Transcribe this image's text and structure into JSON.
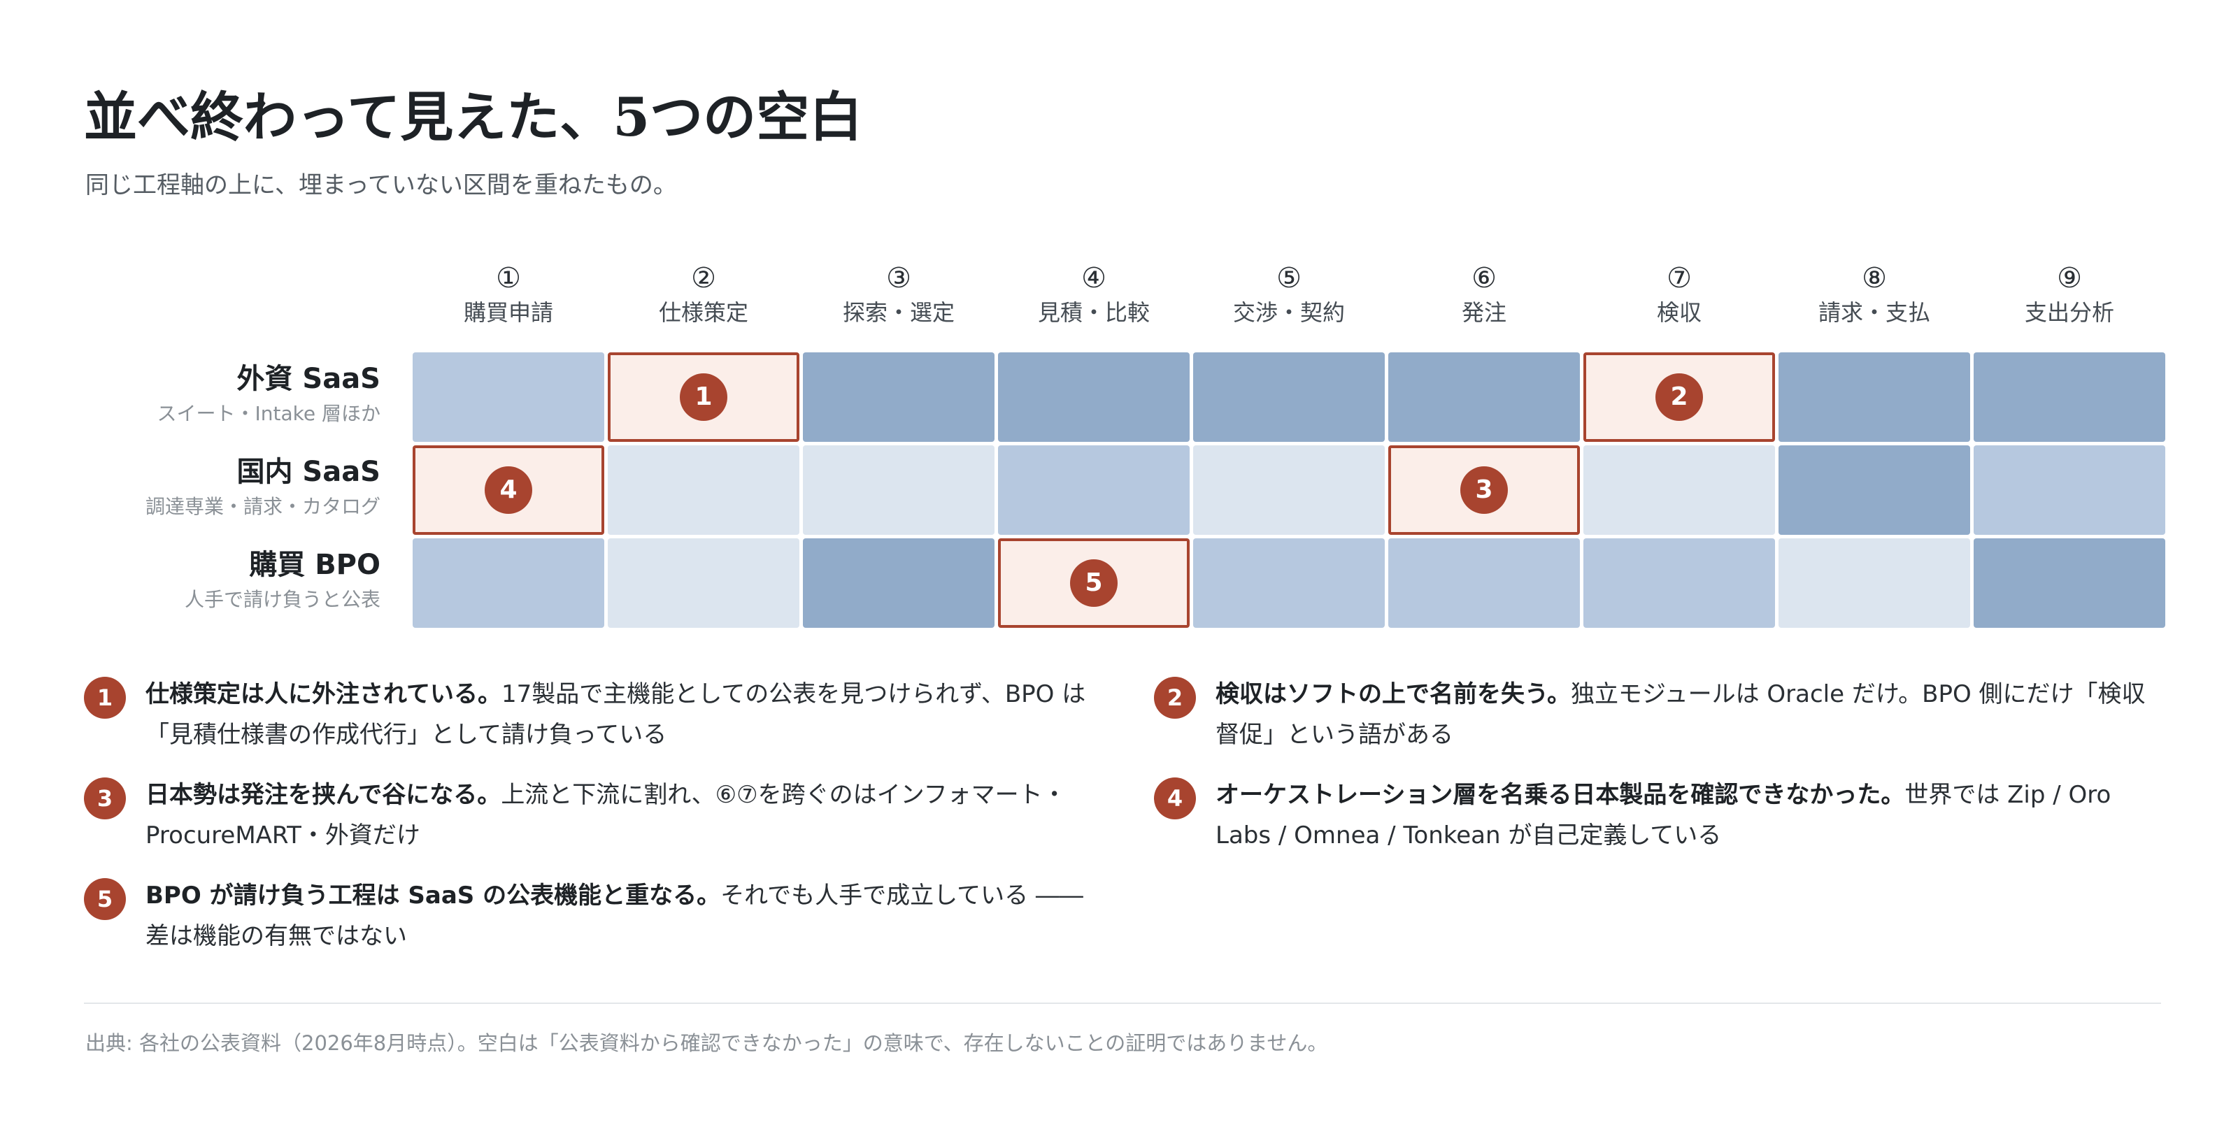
{
  "title": "並べ終わって見えた、5つの空白",
  "subtitle": "同じ工程軸の上に、埋まっていない区間を重ねたもの。",
  "columns": [
    {
      "num": "①",
      "label": "購買申請"
    },
    {
      "num": "②",
      "label": "仕様策定"
    },
    {
      "num": "③",
      "label": "探索・選定"
    },
    {
      "num": "④",
      "label": "見積・比較"
    },
    {
      "num": "⑤",
      "label": "交渉・契約"
    },
    {
      "num": "⑥",
      "label": "発注"
    },
    {
      "num": "⑦",
      "label": "検収"
    },
    {
      "num": "⑧",
      "label": "請求・支払"
    },
    {
      "num": "⑨",
      "label": "支出分析"
    }
  ],
  "rows": [
    {
      "name": "外資 SaaS",
      "desc": "スイート・Intake 層ほか",
      "cells": [
        {
          "level": 1
        },
        {
          "gap": "1"
        },
        {
          "level": 2
        },
        {
          "level": 2
        },
        {
          "level": 2
        },
        {
          "level": 2
        },
        {
          "gap": "2"
        },
        {
          "level": 2
        },
        {
          "level": 2
        }
      ]
    },
    {
      "name": "国内 SaaS",
      "desc": "調達専業・請求・カタログ",
      "cells": [
        {
          "gap": "4"
        },
        {
          "level": 0
        },
        {
          "level": 0
        },
        {
          "level": 1
        },
        {
          "level": 0
        },
        {
          "gap": "3"
        },
        {
          "level": 0
        },
        {
          "level": 2
        },
        {
          "level": 1
        }
      ]
    },
    {
      "name": "購買 BPO",
      "desc": "人手で請け負うと公表",
      "cells": [
        {
          "level": 1
        },
        {
          "level": 0
        },
        {
          "level": 2
        },
        {
          "gap": "5"
        },
        {
          "level": 1
        },
        {
          "level": 1
        },
        {
          "level": 1
        },
        {
          "level": 0
        },
        {
          "level": 2
        }
      ]
    }
  ],
  "colors": {
    "level_0": "#dce5ef",
    "level_1": "#b6c8df",
    "level_2": "#91abc9",
    "gap_fill": "#fbeee9",
    "accent": "#a8442f"
  },
  "notes": [
    {
      "num": "1",
      "bold": "仕様策定は人に外注されている。",
      "text": "17製品で主機能としての公表を見つけられず、BPO は「見積仕様書の作成代行」として請け負っている"
    },
    {
      "num": "2",
      "bold": "検収はソフトの上で名前を失う。",
      "text": "独立モジュールは Oracle だけ。BPO 側にだけ「検収督促」という語がある"
    },
    {
      "num": "3",
      "bold": "日本勢は発注を挟んで谷になる。",
      "text": "上流と下流に割れ、⑥⑦を跨ぐのはインフォマート・ProcureMART・外資だけ"
    },
    {
      "num": "4",
      "bold": "オーケストレーション層を名乗る日本製品を確認できなかった。",
      "text": "世界では Zip / Oro Labs / Omnea / Tonkean が自己定義している"
    },
    {
      "num": "5",
      "bold": "BPO が請け負う工程は SaaS の公表機能と重なる。",
      "text": "それでも人手で成立している ―― 差は機能の有無ではない"
    }
  ],
  "footer": "出典: 各社の公表資料（2026年8月時点）。空白は「公表資料から確認できなかった」の意味で、存在しないことの証明ではありません。"
}
